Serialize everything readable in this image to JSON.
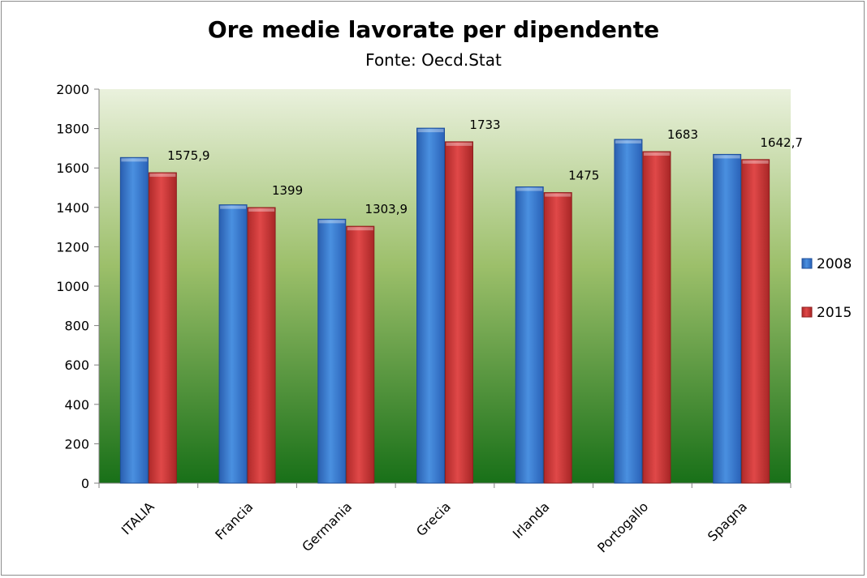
{
  "chart_data": {
    "type": "bar",
    "title": "Ore medie lavorate per dipendente",
    "subtitle": "Fonte: Oecd.Stat",
    "xlabel": "",
    "ylabel": "",
    "ylim": [
      0,
      2000
    ],
    "yticks": [
      "0",
      "200",
      "400",
      "600",
      "800",
      "1000",
      "1200",
      "1400",
      "1600",
      "1800",
      "2000"
    ],
    "categories": [
      "ITALIA",
      "Francia",
      "Germania",
      "Grecia",
      "Irlanda",
      "Portogallo",
      "Spagna"
    ],
    "series": [
      {
        "name": "2008",
        "color": "#3a7fd5",
        "values": [
          1653,
          1413,
          1340,
          1802,
          1504,
          1745,
          1669
        ]
      },
      {
        "name": "2015",
        "color": "#d93a3a",
        "values": [
          1575.9,
          1399,
          1303.9,
          1733,
          1475,
          1683,
          1642.7
        ],
        "data_labels": [
          "1575,9",
          "1399",
          "1303,9",
          "1733",
          "1475",
          "1683",
          "1642,7"
        ]
      }
    ],
    "grid": false,
    "legend_position": "right",
    "background": {
      "top": "#eaf1dd",
      "bottom": "#187018"
    }
  }
}
